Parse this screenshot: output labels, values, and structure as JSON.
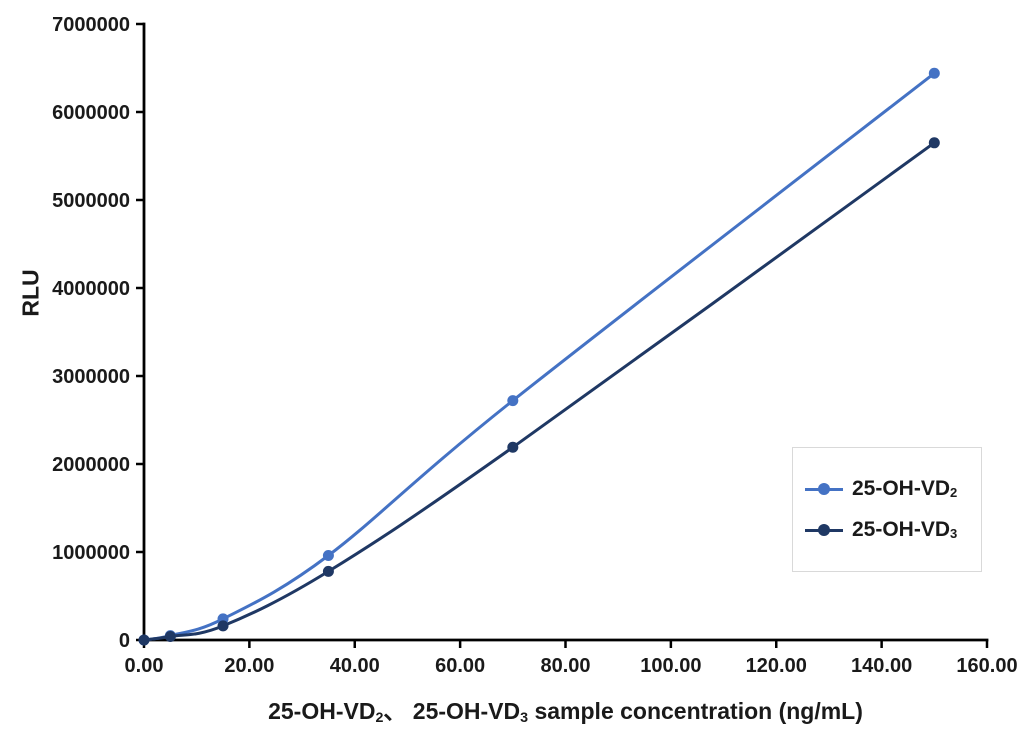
{
  "chart_data": {
    "type": "line",
    "ylabel": "RLU",
    "xlabel": {
      "pre": "25-OH-VD",
      "sub1": "2",
      "mid": "、 25-OH-VD",
      "sub2": "3",
      "post": " sample concentration (ng/mL)"
    },
    "xlim": [
      0,
      160
    ],
    "ylim": [
      0,
      7000000
    ],
    "grid": false,
    "axis_color": "#000000",
    "x_tick_values": [
      0,
      20,
      40,
      60,
      80,
      100,
      120,
      140,
      160
    ],
    "x_tick_labels": [
      "0.00",
      "20.00",
      "40.00",
      "60.00",
      "80.00",
      "100.00",
      "120.00",
      "140.00",
      "160.00"
    ],
    "y_tick_values": [
      0,
      1000000,
      2000000,
      3000000,
      4000000,
      5000000,
      6000000,
      7000000
    ],
    "y_tick_labels": [
      "0",
      "1000000",
      "2000000",
      "3000000",
      "4000000",
      "5000000",
      "6000000",
      "7000000"
    ],
    "x": [
      0,
      5,
      15,
      35,
      70,
      150
    ],
    "series": [
      {
        "name": "25-OH-VD2",
        "label_pre": "25-OH-VD",
        "label_sub": "2",
        "color": "#4472C4",
        "values": [
          0,
          50000,
          240000,
          960000,
          2720000,
          6440000
        ]
      },
      {
        "name": "25-OH-VD3",
        "label_pre": "25-OH-VD",
        "label_sub": "3",
        "color": "#1F3864",
        "values": [
          0,
          40000,
          160000,
          780000,
          2190000,
          5650000
        ]
      }
    ],
    "legend": {
      "position": "right-inside",
      "border_color": "#d9d9d9"
    }
  }
}
